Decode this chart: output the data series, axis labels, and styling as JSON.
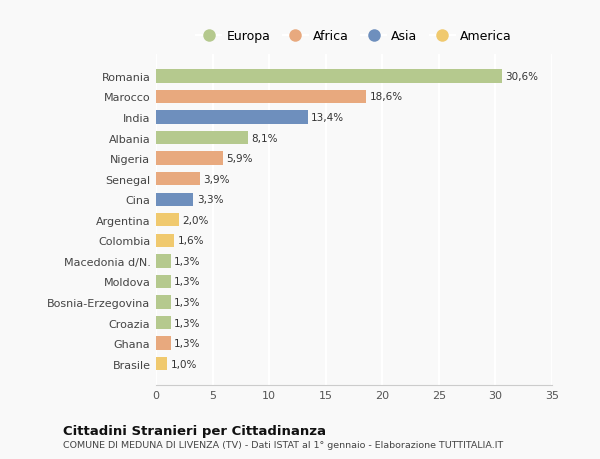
{
  "categories": [
    "Romania",
    "Marocco",
    "India",
    "Albania",
    "Nigeria",
    "Senegal",
    "Cina",
    "Argentina",
    "Colombia",
    "Macedonia d/N.",
    "Moldova",
    "Bosnia-Erzegovina",
    "Croazia",
    "Ghana",
    "Brasile"
  ],
  "values": [
    30.6,
    18.6,
    13.4,
    8.1,
    5.9,
    3.9,
    3.3,
    2.0,
    1.6,
    1.3,
    1.3,
    1.3,
    1.3,
    1.3,
    1.0
  ],
  "labels": [
    "30,6%",
    "18,6%",
    "13,4%",
    "8,1%",
    "5,9%",
    "3,9%",
    "3,3%",
    "2,0%",
    "1,6%",
    "1,3%",
    "1,3%",
    "1,3%",
    "1,3%",
    "1,3%",
    "1,0%"
  ],
  "continents": [
    "Europa",
    "Africa",
    "Asia",
    "Europa",
    "Africa",
    "Africa",
    "Asia",
    "America",
    "America",
    "Europa",
    "Europa",
    "Europa",
    "Europa",
    "Africa",
    "America"
  ],
  "continent_colors": {
    "Europa": "#b5c98e",
    "Africa": "#e8a97e",
    "Asia": "#6e8fbd",
    "America": "#f0c96e"
  },
  "legend_order": [
    "Europa",
    "Africa",
    "Asia",
    "America"
  ],
  "title": "Cittadini Stranieri per Cittadinanza",
  "subtitle": "COMUNE DI MEDUNA DI LIVENZA (TV) - Dati ISTAT al 1° gennaio - Elaborazione TUTTITALIA.IT",
  "xlim": [
    0,
    35
  ],
  "xticks": [
    0,
    5,
    10,
    15,
    20,
    25,
    30,
    35
  ],
  "background_color": "#f9f9f9",
  "grid_color": "#ffffff",
  "bar_height": 0.65
}
